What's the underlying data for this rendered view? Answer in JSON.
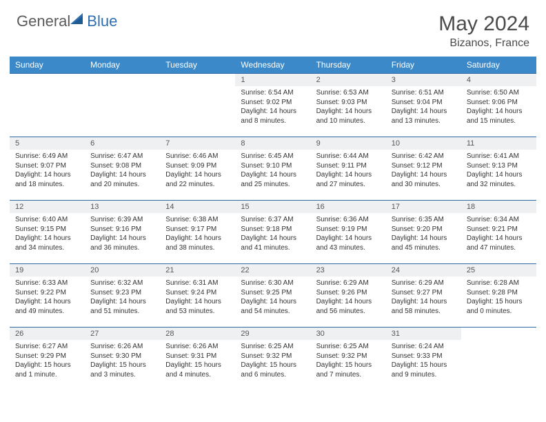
{
  "logo": {
    "name1": "General",
    "name2": "Blue"
  },
  "title": "May 2024",
  "location": "Bizanos, France",
  "weekdays": [
    "Sunday",
    "Monday",
    "Tuesday",
    "Wednesday",
    "Thursday",
    "Friday",
    "Saturday"
  ],
  "colors": {
    "header_bg": "#3b89c9",
    "row_divider": "#2e6aa3",
    "daynum_bg": "#eef0f1",
    "logo_gray": "#5a5a5a",
    "logo_blue": "#2f6fb0"
  },
  "first_weekday_index": 3,
  "days": [
    {
      "n": 1,
      "sunrise": "6:54 AM",
      "sunset": "9:02 PM",
      "daylight": "14 hours and 8 minutes."
    },
    {
      "n": 2,
      "sunrise": "6:53 AM",
      "sunset": "9:03 PM",
      "daylight": "14 hours and 10 minutes."
    },
    {
      "n": 3,
      "sunrise": "6:51 AM",
      "sunset": "9:04 PM",
      "daylight": "14 hours and 13 minutes."
    },
    {
      "n": 4,
      "sunrise": "6:50 AM",
      "sunset": "9:06 PM",
      "daylight": "14 hours and 15 minutes."
    },
    {
      "n": 5,
      "sunrise": "6:49 AM",
      "sunset": "9:07 PM",
      "daylight": "14 hours and 18 minutes."
    },
    {
      "n": 6,
      "sunrise": "6:47 AM",
      "sunset": "9:08 PM",
      "daylight": "14 hours and 20 minutes."
    },
    {
      "n": 7,
      "sunrise": "6:46 AM",
      "sunset": "9:09 PM",
      "daylight": "14 hours and 22 minutes."
    },
    {
      "n": 8,
      "sunrise": "6:45 AM",
      "sunset": "9:10 PM",
      "daylight": "14 hours and 25 minutes."
    },
    {
      "n": 9,
      "sunrise": "6:44 AM",
      "sunset": "9:11 PM",
      "daylight": "14 hours and 27 minutes."
    },
    {
      "n": 10,
      "sunrise": "6:42 AM",
      "sunset": "9:12 PM",
      "daylight": "14 hours and 30 minutes."
    },
    {
      "n": 11,
      "sunrise": "6:41 AM",
      "sunset": "9:13 PM",
      "daylight": "14 hours and 32 minutes."
    },
    {
      "n": 12,
      "sunrise": "6:40 AM",
      "sunset": "9:15 PM",
      "daylight": "14 hours and 34 minutes."
    },
    {
      "n": 13,
      "sunrise": "6:39 AM",
      "sunset": "9:16 PM",
      "daylight": "14 hours and 36 minutes."
    },
    {
      "n": 14,
      "sunrise": "6:38 AM",
      "sunset": "9:17 PM",
      "daylight": "14 hours and 38 minutes."
    },
    {
      "n": 15,
      "sunrise": "6:37 AM",
      "sunset": "9:18 PM",
      "daylight": "14 hours and 41 minutes."
    },
    {
      "n": 16,
      "sunrise": "6:36 AM",
      "sunset": "9:19 PM",
      "daylight": "14 hours and 43 minutes."
    },
    {
      "n": 17,
      "sunrise": "6:35 AM",
      "sunset": "9:20 PM",
      "daylight": "14 hours and 45 minutes."
    },
    {
      "n": 18,
      "sunrise": "6:34 AM",
      "sunset": "9:21 PM",
      "daylight": "14 hours and 47 minutes."
    },
    {
      "n": 19,
      "sunrise": "6:33 AM",
      "sunset": "9:22 PM",
      "daylight": "14 hours and 49 minutes."
    },
    {
      "n": 20,
      "sunrise": "6:32 AM",
      "sunset": "9:23 PM",
      "daylight": "14 hours and 51 minutes."
    },
    {
      "n": 21,
      "sunrise": "6:31 AM",
      "sunset": "9:24 PM",
      "daylight": "14 hours and 53 minutes."
    },
    {
      "n": 22,
      "sunrise": "6:30 AM",
      "sunset": "9:25 PM",
      "daylight": "14 hours and 54 minutes."
    },
    {
      "n": 23,
      "sunrise": "6:29 AM",
      "sunset": "9:26 PM",
      "daylight": "14 hours and 56 minutes."
    },
    {
      "n": 24,
      "sunrise": "6:29 AM",
      "sunset": "9:27 PM",
      "daylight": "14 hours and 58 minutes."
    },
    {
      "n": 25,
      "sunrise": "6:28 AM",
      "sunset": "9:28 PM",
      "daylight": "15 hours and 0 minutes."
    },
    {
      "n": 26,
      "sunrise": "6:27 AM",
      "sunset": "9:29 PM",
      "daylight": "15 hours and 1 minute."
    },
    {
      "n": 27,
      "sunrise": "6:26 AM",
      "sunset": "9:30 PM",
      "daylight": "15 hours and 3 minutes."
    },
    {
      "n": 28,
      "sunrise": "6:26 AM",
      "sunset": "9:31 PM",
      "daylight": "15 hours and 4 minutes."
    },
    {
      "n": 29,
      "sunrise": "6:25 AM",
      "sunset": "9:32 PM",
      "daylight": "15 hours and 6 minutes."
    },
    {
      "n": 30,
      "sunrise": "6:25 AM",
      "sunset": "9:32 PM",
      "daylight": "15 hours and 7 minutes."
    },
    {
      "n": 31,
      "sunrise": "6:24 AM",
      "sunset": "9:33 PM",
      "daylight": "15 hours and 9 minutes."
    }
  ],
  "labels": {
    "sunrise": "Sunrise:",
    "sunset": "Sunset:",
    "daylight": "Daylight:"
  }
}
